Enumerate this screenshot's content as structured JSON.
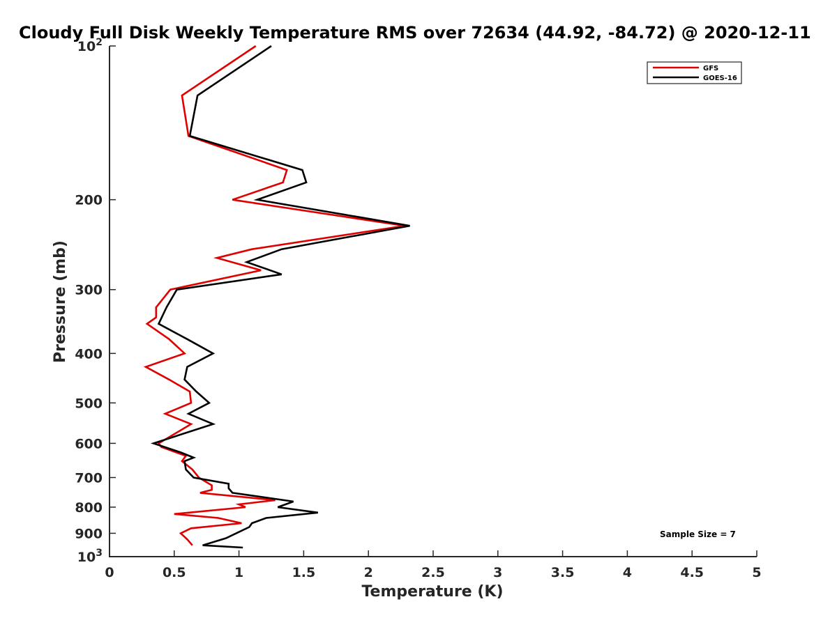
{
  "chart_data": {
    "type": "line",
    "title": "Cloudy Full Disk Weekly Temperature RMS over 72634 (44.92, -84.72) @ 2020-12-11",
    "xlabel": "Temperature (K)",
    "ylabel": "Pressure (mb)",
    "xlim": [
      0,
      5
    ],
    "ylim": [
      100,
      1000
    ],
    "y_scale": "log",
    "y_reversed": true,
    "grid": false,
    "legend_position": "top-right",
    "x_ticks": [
      0,
      0.5,
      1,
      1.5,
      2,
      2.5,
      3,
      3.5,
      4,
      4.5,
      5
    ],
    "x_tick_labels": [
      "0",
      "0.5",
      "1",
      "1.5",
      "2",
      "2.5",
      "3",
      "3.5",
      "4",
      "4.5",
      "5"
    ],
    "y_ticks": [
      {
        "value": 100,
        "base": "10",
        "exp": "2"
      },
      {
        "value": 200,
        "label": "200"
      },
      {
        "value": 300,
        "label": "300"
      },
      {
        "value": 400,
        "label": "400"
      },
      {
        "value": 500,
        "label": "500"
      },
      {
        "value": 600,
        "label": "600"
      },
      {
        "value": 700,
        "label": "700"
      },
      {
        "value": 800,
        "label": "800"
      },
      {
        "value": 900,
        "label": "900"
      },
      {
        "value": 1000,
        "base": "10",
        "exp": "3"
      }
    ],
    "annotation": "Sample Size = 7",
    "series": [
      {
        "name": "GFS",
        "color": "#e00000",
        "points": [
          [
            1.13,
            100
          ],
          [
            0.56,
            125
          ],
          [
            0.61,
            150
          ],
          [
            1.37,
            175
          ],
          [
            1.34,
            185
          ],
          [
            0.95,
            200
          ],
          [
            2.28,
            225
          ],
          [
            1.1,
            250
          ],
          [
            0.83,
            260
          ],
          [
            1.17,
            275
          ],
          [
            0.47,
            300
          ],
          [
            0.36,
            325
          ],
          [
            0.36,
            340
          ],
          [
            0.29,
            350
          ],
          [
            0.46,
            375
          ],
          [
            0.58,
            400
          ],
          [
            0.28,
            425
          ],
          [
            0.46,
            450
          ],
          [
            0.62,
            475
          ],
          [
            0.63,
            500
          ],
          [
            0.43,
            525
          ],
          [
            0.63,
            550
          ],
          [
            0.38,
            600
          ],
          [
            0.4,
            610
          ],
          [
            0.59,
            635
          ],
          [
            0.56,
            650
          ],
          [
            0.64,
            675
          ],
          [
            0.69,
            700
          ],
          [
            0.79,
            725
          ],
          [
            0.79,
            740
          ],
          [
            0.7,
            750
          ],
          [
            1.28,
            775
          ],
          [
            1.0,
            790
          ],
          [
            1.05,
            800
          ],
          [
            0.5,
            825
          ],
          [
            0.84,
            840
          ],
          [
            1.02,
            860
          ],
          [
            0.63,
            880
          ],
          [
            0.55,
            900
          ],
          [
            0.6,
            925
          ],
          [
            0.64,
            950
          ]
        ]
      },
      {
        "name": "GOES-16",
        "color": "#000000",
        "points": [
          [
            1.25,
            100
          ],
          [
            0.68,
            125
          ],
          [
            0.62,
            150
          ],
          [
            1.49,
            175
          ],
          [
            1.52,
            185
          ],
          [
            1.14,
            200
          ],
          [
            2.32,
            225
          ],
          [
            1.33,
            250
          ],
          [
            1.06,
            265
          ],
          [
            1.33,
            280
          ],
          [
            0.52,
            300
          ],
          [
            0.44,
            325
          ],
          [
            0.38,
            350
          ],
          [
            0.6,
            375
          ],
          [
            0.8,
            400
          ],
          [
            0.6,
            425
          ],
          [
            0.58,
            450
          ],
          [
            0.67,
            475
          ],
          [
            0.77,
            500
          ],
          [
            0.61,
            525
          ],
          [
            0.8,
            550
          ],
          [
            0.34,
            600
          ],
          [
            0.55,
            625
          ],
          [
            0.65,
            640
          ],
          [
            0.58,
            650
          ],
          [
            0.59,
            675
          ],
          [
            0.65,
            700
          ],
          [
            0.92,
            720
          ],
          [
            0.92,
            735
          ],
          [
            0.95,
            750
          ],
          [
            1.42,
            780
          ],
          [
            1.3,
            800
          ],
          [
            1.61,
            820
          ],
          [
            1.21,
            840
          ],
          [
            1.1,
            860
          ],
          [
            1.08,
            875
          ],
          [
            0.9,
            920
          ],
          [
            0.72,
            950
          ],
          [
            1.03,
            960
          ]
        ]
      }
    ]
  }
}
